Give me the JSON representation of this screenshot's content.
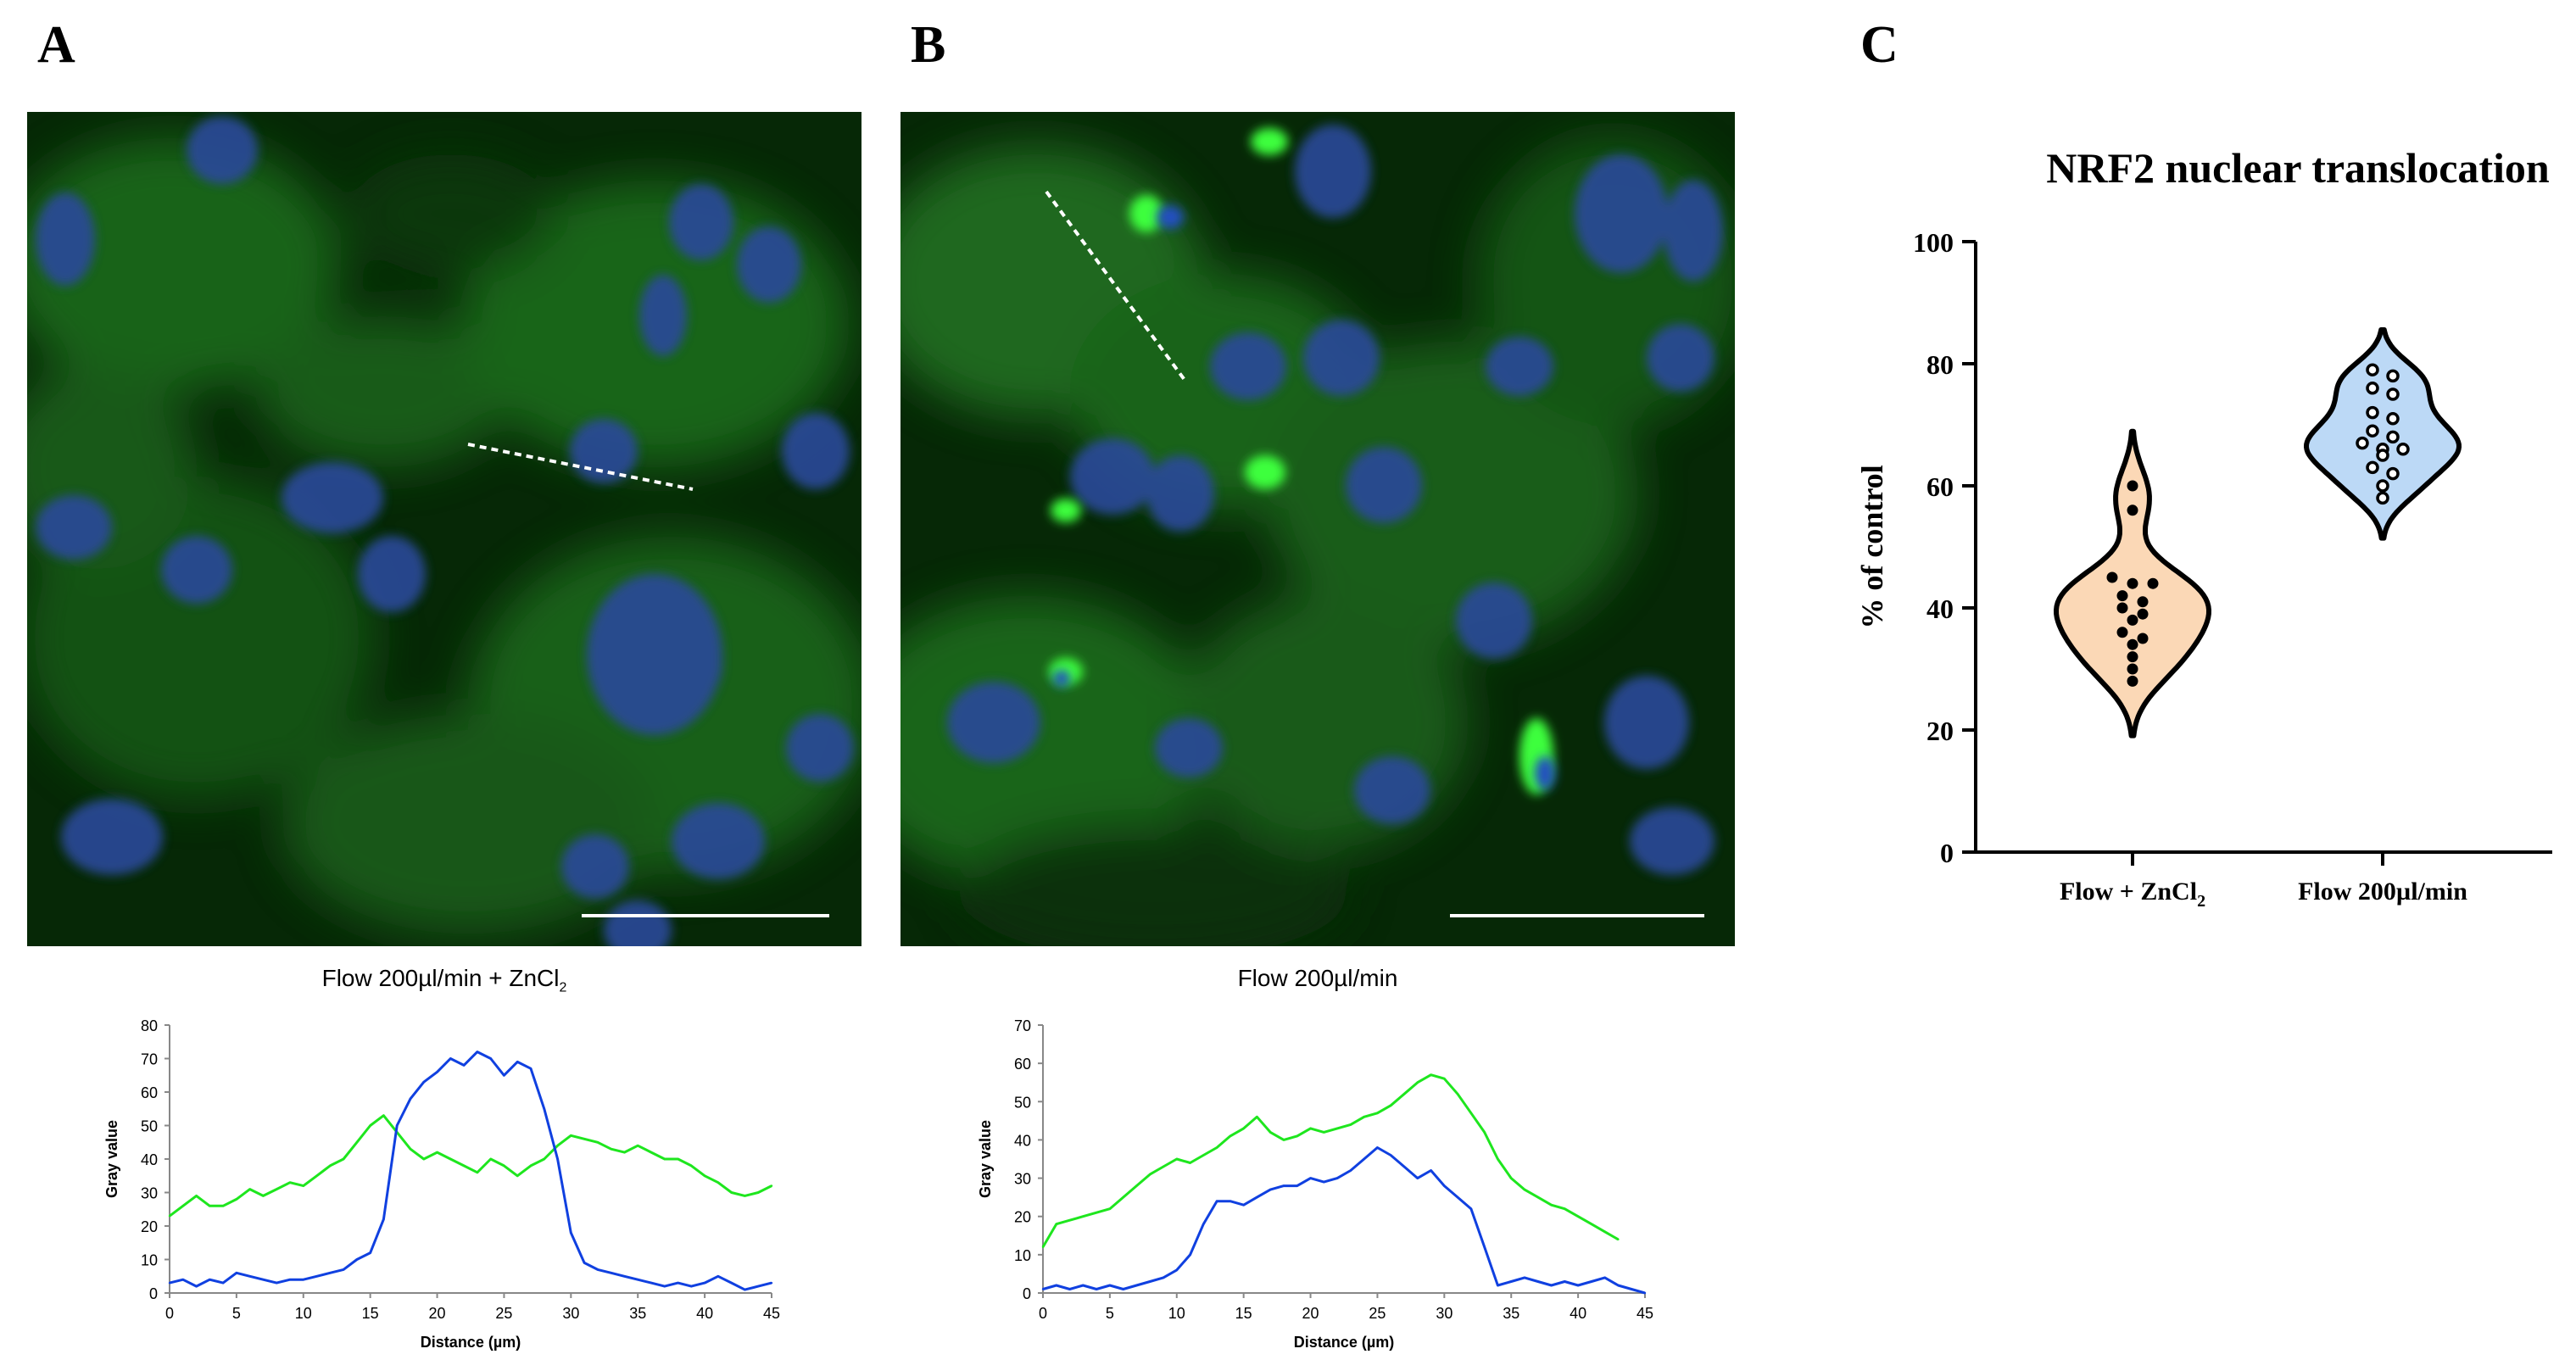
{
  "panels": {
    "a": {
      "letter": "A",
      "caption_main": "Flow 200µl/min + ZnCl",
      "caption_sub": "2"
    },
    "b": {
      "letter": "B",
      "caption_main": "Flow 200µl/min"
    },
    "c": {
      "letter": "C"
    }
  },
  "colors": {
    "green": "#1ee61e",
    "blue": "#1040e0",
    "violin_orange": "#fbd8b6",
    "violin_blue": "#bcd9f6"
  },
  "chart_data": [
    {
      "id": "profile-a",
      "type": "line",
      "title": "",
      "xlabel": "Distance (µm)",
      "ylabel": "Gray value",
      "xlim": [
        0,
        45
      ],
      "ylim": [
        0,
        80
      ],
      "xticks": [
        0,
        5,
        10,
        15,
        20,
        25,
        30,
        35,
        40,
        45
      ],
      "yticks": [
        0,
        10,
        20,
        30,
        40,
        50,
        60,
        70,
        80
      ],
      "series": [
        {
          "name": "green",
          "x": [
            0,
            1,
            2,
            3,
            4,
            5,
            6,
            7,
            8,
            9,
            10,
            11,
            12,
            13,
            14,
            15,
            16,
            17,
            18,
            19,
            20,
            21,
            22,
            23,
            24,
            25,
            26,
            27,
            28,
            29,
            30,
            31,
            32,
            33,
            34,
            35,
            36,
            37,
            38,
            39,
            40,
            41,
            42,
            43,
            44,
            45
          ],
          "y": [
            23,
            26,
            29,
            26,
            26,
            28,
            31,
            29,
            31,
            33,
            32,
            35,
            38,
            40,
            45,
            50,
            53,
            48,
            43,
            40,
            42,
            40,
            38,
            36,
            40,
            38,
            35,
            38,
            40,
            44,
            47,
            46,
            45,
            43,
            42,
            44,
            42,
            40,
            40,
            38,
            35,
            33,
            30,
            29,
            30,
            32
          ]
        },
        {
          "name": "blue",
          "x": [
            0,
            1,
            2,
            3,
            4,
            5,
            6,
            7,
            8,
            9,
            10,
            11,
            12,
            13,
            14,
            15,
            16,
            17,
            18,
            19,
            20,
            21,
            22,
            23,
            24,
            25,
            26,
            27,
            28,
            29,
            30,
            31,
            32,
            33,
            34,
            35,
            36,
            37,
            38,
            39,
            40,
            41,
            42,
            43,
            44,
            45
          ],
          "y": [
            3,
            4,
            2,
            4,
            3,
            6,
            5,
            4,
            3,
            4,
            4,
            5,
            6,
            7,
            10,
            12,
            22,
            50,
            58,
            63,
            66,
            70,
            68,
            72,
            70,
            65,
            69,
            67,
            55,
            40,
            18,
            9,
            7,
            6,
            5,
            4,
            3,
            2,
            3,
            2,
            3,
            5,
            3,
            1,
            2,
            3
          ]
        }
      ]
    },
    {
      "id": "profile-b",
      "type": "line",
      "title": "",
      "xlabel": "Distance (µm)",
      "ylabel": "Gray value",
      "xlim": [
        0,
        45
      ],
      "ylim": [
        0,
        70
      ],
      "xticks": [
        0,
        5,
        10,
        15,
        20,
        25,
        30,
        35,
        40,
        45
      ],
      "yticks": [
        0,
        10,
        20,
        30,
        40,
        50,
        60,
        70
      ],
      "series": [
        {
          "name": "green",
          "x": [
            0,
            1,
            2,
            3,
            4,
            5,
            6,
            7,
            8,
            9,
            10,
            11,
            12,
            13,
            14,
            15,
            16,
            17,
            18,
            19,
            20,
            21,
            22,
            23,
            24,
            25,
            26,
            27,
            28,
            29,
            30,
            31,
            32,
            33,
            34,
            35,
            36,
            37,
            38,
            39,
            40,
            41,
            42,
            43
          ],
          "y": [
            12,
            18,
            19,
            20,
            21,
            22,
            25,
            28,
            31,
            33,
            35,
            34,
            36,
            38,
            41,
            43,
            46,
            42,
            40,
            41,
            43,
            42,
            43,
            44,
            46,
            47,
            49,
            52,
            55,
            57,
            56,
            52,
            47,
            42,
            35,
            30,
            27,
            25,
            23,
            22,
            20,
            18,
            16,
            14
          ]
        },
        {
          "name": "blue",
          "x": [
            0,
            1,
            2,
            3,
            4,
            5,
            6,
            7,
            8,
            9,
            10,
            11,
            12,
            13,
            14,
            15,
            16,
            17,
            18,
            19,
            20,
            21,
            22,
            23,
            24,
            25,
            26,
            27,
            28,
            29,
            30,
            31,
            32,
            33,
            34,
            35,
            36,
            37,
            38,
            39,
            40,
            41,
            42,
            43,
            44,
            45
          ],
          "y": [
            1,
            2,
            1,
            2,
            1,
            2,
            1,
            2,
            3,
            4,
            6,
            10,
            18,
            24,
            24,
            23,
            25,
            27,
            28,
            28,
            30,
            29,
            30,
            32,
            35,
            38,
            36,
            33,
            30,
            32,
            28,
            25,
            22,
            12,
            2,
            3,
            4,
            3,
            2,
            3,
            2,
            3,
            4,
            2,
            1,
            0
          ]
        }
      ]
    },
    {
      "id": "violin-c",
      "type": "violin",
      "title": "NRF2 nuclear translocation",
      "xlabel": "",
      "ylabel": "% of control",
      "ylim": [
        0,
        100
      ],
      "yticks": [
        0,
        20,
        40,
        60,
        80,
        100
      ],
      "groups": [
        {
          "label_main": "Flow + ZnCl",
          "label_sub": "2",
          "color": "#fbd8b6",
          "marker": "filled",
          "values": [
            60,
            56,
            45,
            44,
            44,
            42,
            41,
            40,
            39,
            38,
            36,
            35,
            34,
            32,
            30,
            28
          ]
        },
        {
          "label_main": "Flow 200µl/min",
          "color": "#bcd9f6",
          "marker": "open",
          "values": [
            79,
            78,
            76,
            75,
            72,
            71,
            69,
            68,
            67,
            66,
            66,
            65,
            63,
            62,
            60,
            58
          ]
        }
      ]
    }
  ]
}
